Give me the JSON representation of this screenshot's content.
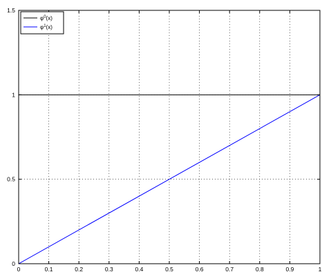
{
  "chart_data": {
    "type": "line",
    "title": "",
    "xlabel": "",
    "ylabel": "",
    "xlim": [
      0,
      1
    ],
    "ylim": [
      0,
      1.5
    ],
    "x_ticks": [
      0,
      0.1,
      0.2,
      0.3,
      0.4,
      0.5,
      0.6,
      0.7,
      0.8,
      0.9,
      1
    ],
    "x_tick_labels": [
      "0",
      "0.1",
      "0.2",
      "0.3",
      "0.4",
      "0.5",
      "0.6",
      "0.7",
      "0.8",
      "0.9",
      "1"
    ],
    "y_ticks": [
      0,
      0.5,
      1,
      1.5
    ],
    "y_tick_labels": [
      "0",
      "0.5",
      "1",
      "1.5"
    ],
    "grid": true,
    "legend_position": "top-left",
    "series": [
      {
        "name": "φ0(x)",
        "label_base": "φ",
        "label_sup": "0",
        "label_tail": "(x)",
        "color": "#000000",
        "x": [
          0,
          1
        ],
        "y": [
          1,
          1
        ]
      },
      {
        "name": "φ1(x)",
        "label_base": "φ",
        "label_sup": "1",
        "label_tail": "(x)",
        "color": "#0000ff",
        "x": [
          0,
          1
        ],
        "y": [
          0,
          1
        ]
      }
    ]
  }
}
